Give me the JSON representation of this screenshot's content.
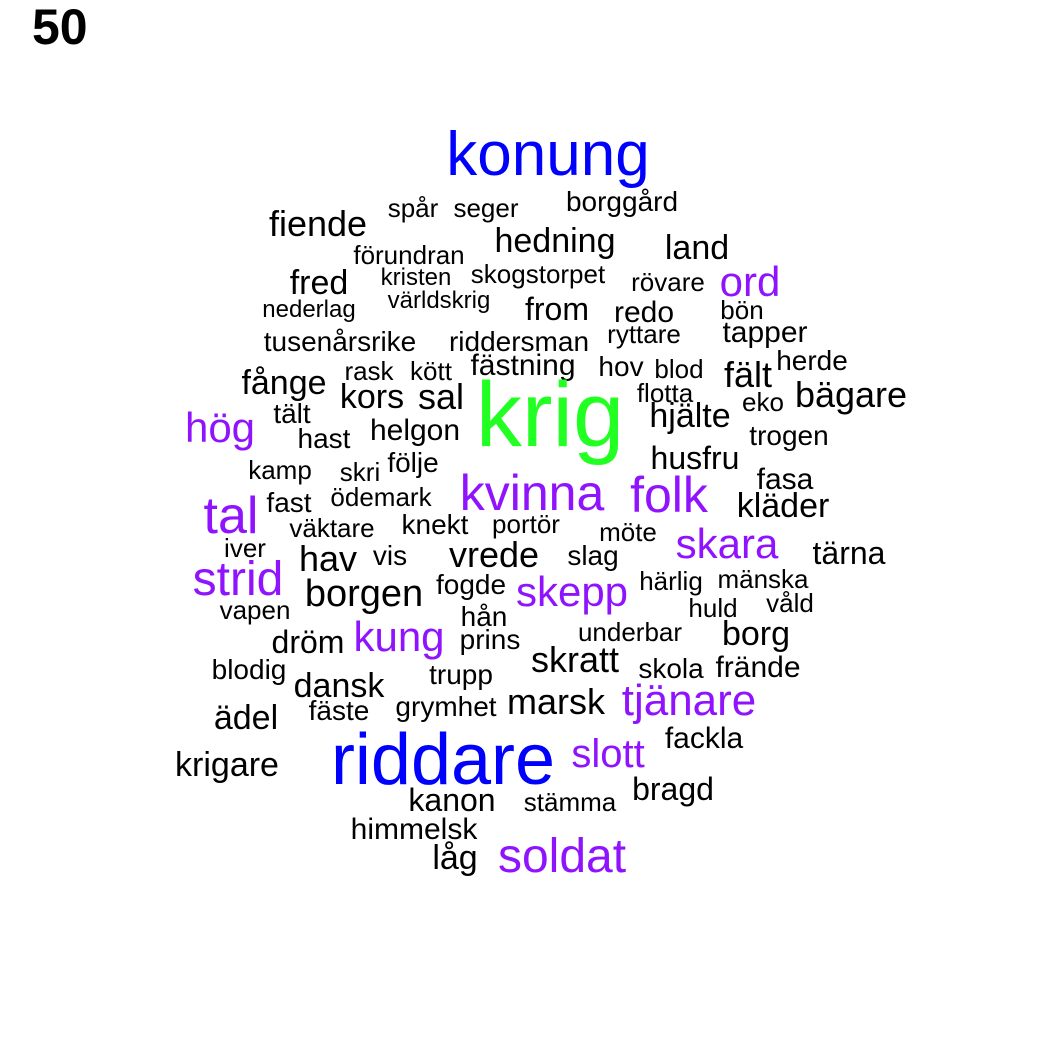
{
  "page_number": "50",
  "palette": {
    "black": "#000000",
    "purple": "#9013FE",
    "blue": "#0000FF",
    "green": "#22FF22"
  },
  "words": {
    "konung": "konung",
    "spar": "spår",
    "seger": "seger",
    "borggard": "borggård",
    "fiende": "fiende",
    "hedning": "hedning",
    "land": "land",
    "forundran": "förundran",
    "fred": "fred",
    "kristen": "kristen",
    "skogstorpet": "skogstorpet",
    "rovare": "rövare",
    "ord": "ord",
    "nederlag": "nederlag",
    "varldskrig": "världskrig",
    "from": "from",
    "redo": "redo",
    "bon": "bön",
    "tusenarsrike": "tusenårsrike",
    "riddersman": "riddersman",
    "ryttare": "ryttare",
    "tapper": "tapper",
    "fastning": "fästning",
    "herde": "herde",
    "rask": "rask",
    "kott": "kött",
    "hov": "hov",
    "blod": "blod",
    "falt": "fält",
    "fange": "fånge",
    "kors": "kors",
    "sal": "sal",
    "krig": "krig",
    "flotta": "flotta",
    "bagare": "bägare",
    "eko": "eko",
    "talt": "tält",
    "hjalte": "hjälte",
    "hog": "hög",
    "hast": "hast",
    "helgon": "helgon",
    "trogen": "trogen",
    "kamp": "kamp",
    "skri": "skri",
    "folje": "följe",
    "husfru": "husfru",
    "fasa": "fasa",
    "kvinna": "kvinna",
    "folk": "folk",
    "fast": "fast",
    "odemark": "ödemark",
    "klader": "kläder",
    "tal": "tal",
    "vaktare": "väktare",
    "knekt": "knekt",
    "portor": "portör",
    "mote": "möte",
    "skara": "skara",
    "iver": "iver",
    "hav": "hav",
    "vis": "vis",
    "vrede": "vrede",
    "slag": "slag",
    "tarna": "tärna",
    "strid": "strid",
    "harlig": "härlig",
    "manska": "mänska",
    "fogde": "fogde",
    "borgen": "borgen",
    "skepp": "skepp",
    "vald": "våld",
    "vapen": "vapen",
    "huld": "huld",
    "han": "hån",
    "drom": "dröm",
    "kung": "kung",
    "prins": "prins",
    "underbar": "underbar",
    "borg": "borg",
    "blodig": "blodig",
    "skratt": "skratt",
    "skola": "skola",
    "frande": "frände",
    "trupp": "trupp",
    "dansk": "dansk",
    "faste": "fäste",
    "grymhet": "grymhet",
    "marsk": "marsk",
    "tjanare": "tjänare",
    "adel": "ädel",
    "fackla": "fackla",
    "riddare": "riddare",
    "slott": "slott",
    "krigare": "krigare",
    "bragd": "bragd",
    "kanon": "kanon",
    "stamma": "stämma",
    "himmelsk": "himmelsk",
    "lag": "låg",
    "soldat": "soldat"
  }
}
